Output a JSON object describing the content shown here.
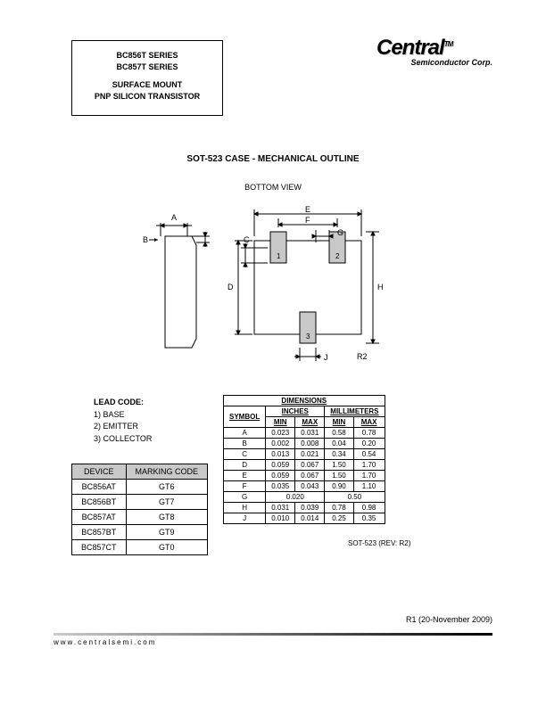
{
  "header": {
    "line1": "BC856T SERIES",
    "line2": "BC857T SERIES",
    "line3": "SURFACE MOUNT",
    "line4": "PNP SILICON TRANSISTOR"
  },
  "logo": {
    "main": "Central",
    "sub": "Semiconductor Corp.",
    "tm": "TM"
  },
  "section_title": "SOT-523 CASE - MECHANICAL OUTLINE",
  "diagram_label": "BOTTOM VIEW",
  "diagram": {
    "labels": {
      "A": "A",
      "B": "B",
      "C": "C",
      "D": "D",
      "E": "E",
      "F": "F",
      "G": "G",
      "H": "H",
      "J": "J",
      "p1": "1",
      "p2": "2",
      "p3": "3"
    },
    "stroke": "#000000",
    "pad_fill": "#c8c8c8",
    "label_fontsize": 9
  },
  "r2_label": "R2",
  "lead_code": {
    "title": "LEAD CODE:",
    "items": [
      "1)  BASE",
      "2)  EMITTER",
      "3)  COLLECTOR"
    ]
  },
  "marking_table": {
    "headers": [
      "DEVICE",
      "MARKING CODE"
    ],
    "rows": [
      [
        "BC856AT",
        "GT6"
      ],
      [
        "BC856BT",
        "GT7"
      ],
      [
        "BC857AT",
        "GT8"
      ],
      [
        "BC857BT",
        "GT9"
      ],
      [
        "BC857CT",
        "GT0"
      ]
    ]
  },
  "dim_table": {
    "title": "DIMENSIONS",
    "unit_headers": [
      "INCHES",
      "MILLIMETERS"
    ],
    "sub_headers": [
      "SYMBOL",
      "MIN",
      "MAX",
      "MIN",
      "MAX"
    ],
    "rows": [
      {
        "sym": "A",
        "vals": [
          "0.023",
          "0.031",
          "0.58",
          "0.78"
        ]
      },
      {
        "sym": "B",
        "vals": [
          "0.002",
          "0.008",
          "0.04",
          "0.20"
        ]
      },
      {
        "sym": "C",
        "vals": [
          "0.013",
          "0.021",
          "0.34",
          "0.54"
        ]
      },
      {
        "sym": "D",
        "vals": [
          "0.059",
          "0.067",
          "1.50",
          "1.70"
        ]
      },
      {
        "sym": "E",
        "vals": [
          "0.059",
          "0.067",
          "1.50",
          "1.70"
        ]
      },
      {
        "sym": "F",
        "vals": [
          "0.035",
          "0.043",
          "0.90",
          "1.10"
        ]
      },
      {
        "sym": "G",
        "vals": [
          "0.020",
          "0.50"
        ],
        "merged": true
      },
      {
        "sym": "H",
        "vals": [
          "0.031",
          "0.039",
          "0.78",
          "0.98"
        ]
      },
      {
        "sym": "J",
        "vals": [
          "0.010",
          "0.014",
          "0.25",
          "0.35"
        ]
      }
    ],
    "caption": "SOT-523 (REV: R2)"
  },
  "revision": "R1 (20-November 2009)",
  "footer": "www.centralsemi.com"
}
